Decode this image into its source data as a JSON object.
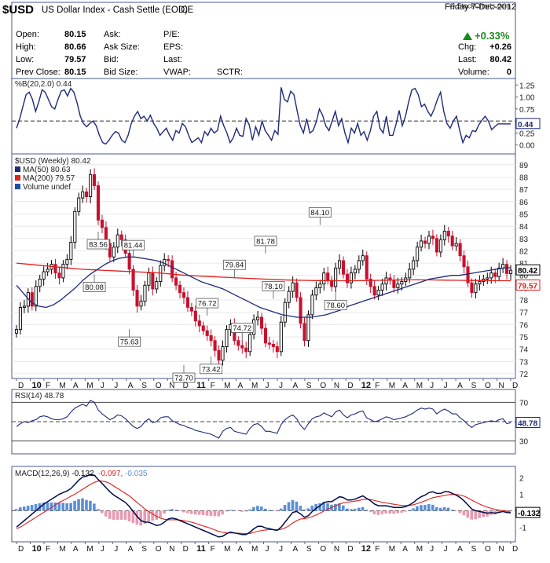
{
  "header": {
    "symbol": "$USD",
    "name": "US Dollar Index - Cash Settle (EOD)",
    "exchange": "ICE",
    "date": "Friday   7-Dec-2012",
    "watermark": "© StockCharts.com",
    "change_pct": "+0.33%",
    "fields": [
      {
        "label": "Open:",
        "value": "80.15"
      },
      {
        "label": "High:",
        "value": "80.66"
      },
      {
        "label": "Low:",
        "value": "79.57"
      },
      {
        "label": "Prev Close:",
        "value": "80.15"
      }
    ],
    "fields2": [
      "Ask:",
      "Ask Size:",
      "Bid:",
      "Bid Size:"
    ],
    "fields3": [
      "P/E:",
      "EPS:",
      "Last:",
      "VWAP:"
    ],
    "sctr": "SCTR:",
    "right": [
      {
        "label": "Chg:",
        "value": "+0.26"
      },
      {
        "label": "Last:",
        "value": "80.42"
      },
      {
        "label": "Volume:",
        "value": "0"
      }
    ]
  },
  "colors": {
    "up": "#000000",
    "down": "#c8102e",
    "ma50": "#1f2a7a",
    "ma200": "#e0201c",
    "panel_border": "#4a5a8a",
    "positive": "#1a8a1a",
    "hist_pos": "#5a8fd8",
    "hist_neg": "#e79ab0"
  },
  "chart_data": [
    {
      "type": "line",
      "title": "%B(20,2.0) 0.44",
      "ylim": [
        -0.12,
        1.32
      ],
      "ticks": [
        "1.25",
        "1.00",
        "0.75",
        "0.50",
        "0.25",
        "0.00"
      ],
      "last_label": "0.44",
      "x": [
        0,
        1,
        2,
        3,
        4,
        5,
        6,
        7,
        8,
        9,
        10,
        11,
        12,
        13,
        14,
        15,
        16,
        17,
        18,
        19,
        20,
        21,
        22,
        23,
        24,
        25,
        26,
        27,
        28,
        29,
        30,
        31,
        32,
        33,
        34,
        35,
        36,
        37,
        38,
        39,
        40,
        41,
        42,
        43,
        44,
        45,
        46,
        47,
        48,
        49,
        50,
        51,
        52,
        53,
        54,
        55,
        56,
        57,
        58,
        59,
        60,
        61,
        62,
        63,
        64,
        65,
        66,
        67,
        68,
        69,
        70,
        71,
        72,
        73,
        74,
        75,
        76,
        77,
        78,
        79,
        80,
        81,
        82,
        83,
        84,
        85,
        86,
        87,
        88,
        89,
        90,
        91,
        92,
        93,
        94,
        95,
        96,
        97,
        98,
        99,
        100,
        101,
        102,
        103,
        104,
        105,
        106,
        107,
        108,
        109,
        110,
        111,
        112,
        113,
        114,
        115,
        116,
        117,
        118,
        119,
        120,
        121,
        122,
        123,
        124,
        125,
        126,
        127,
        128,
        129,
        130,
        131,
        132,
        133,
        134,
        135,
        136,
        137,
        138,
        139,
        140,
        141,
        142,
        143,
        144,
        145,
        146,
        147,
        148,
        149,
        150,
        151,
        152,
        153,
        154,
        155
      ],
      "values": [
        0.35,
        0.55,
        0.8,
        1.05,
        1.1,
        0.95,
        0.7,
        0.9,
        1.15,
        1.1,
        0.95,
        0.8,
        0.75,
        0.95,
        1.12,
        1.15,
        1.02,
        1.18,
        1.1,
        0.88,
        0.6,
        0.45,
        0.38,
        0.45,
        0.5,
        0.4,
        0.2,
        0.05,
        0.02,
        0.1,
        0.2,
        0.28,
        0.25,
        0.1,
        0.05,
        0.2,
        0.45,
        0.6,
        0.7,
        0.55,
        0.6,
        0.5,
        0.62,
        0.45,
        0.35,
        0.2,
        0.28,
        0.35,
        0.2,
        0.1,
        0.3,
        0.25,
        0.45,
        0.38,
        0.2,
        0.05,
        0.1,
        0.15,
        0.05,
        0.28,
        0.2,
        0.35,
        0.25,
        0.3,
        0.6,
        0.4,
        0.25,
        0.05,
        0.15,
        0.35,
        0.2,
        0.18,
        0.55,
        0.42,
        0.1,
        0.38,
        0.2,
        0.5,
        0.3,
        0.2,
        0.1,
        0.3,
        0.22,
        1.2,
        0.95,
        0.9,
        1.12,
        1.05,
        0.72,
        0.4,
        0.25,
        0.55,
        0.25,
        0.3,
        0.48,
        0.75,
        0.62,
        0.4,
        0.3,
        0.5,
        0.7,
        0.4,
        0.55,
        0.25,
        0.05,
        0.35,
        0.25,
        0.45,
        0.2,
        0.28,
        0.1,
        0.3,
        0.6,
        0.7,
        0.35,
        0.25,
        0.6,
        0.2,
        0.2,
        0.42,
        0.72,
        0.4,
        0.6,
        0.9,
        1.15,
        1.18,
        1.05,
        0.8,
        0.85,
        0.7,
        0.6,
        0.75,
        0.95,
        1.1,
        0.7,
        0.45,
        0.35,
        0.5,
        0.6,
        0.3,
        0.05,
        0.2,
        0.15,
        0.3,
        0.28,
        0.42,
        0.52,
        0.6,
        0.5,
        0.32,
        0.38,
        0.44,
        0.44,
        0.44,
        0.44,
        0.44
      ]
    },
    {
      "type": "candlestick",
      "title": "$USD (Weekly) 80.42",
      "legend": [
        "MA(50) 80.63",
        "MA(200) 79.57",
        "Volume undef"
      ],
      "ylim": [
        72,
        89.5
      ],
      "ticks": [
        72,
        73,
        74,
        75,
        76,
        77,
        78,
        79,
        80,
        81,
        82,
        83,
        84,
        85,
        86,
        87,
        88,
        89
      ],
      "last_labels": [
        "80.42",
        "79.57"
      ],
      "closes": [
        75.6,
        77.4,
        77.5,
        78.6,
        77.5,
        79.1,
        79.7,
        80.3,
        80.5,
        80.9,
        80.2,
        79.8,
        80.9,
        81.3,
        82.7,
        85.2,
        86.3,
        86.8,
        86.4,
        88.2,
        87.3,
        84.5,
        83.9,
        82.6,
        81.5,
        82.3,
        83.3,
        82.9,
        81.8,
        80.5,
        78.8,
        77.5,
        77.9,
        79.2,
        80.2,
        78.9,
        79.5,
        80.8,
        81.3,
        81.2,
        79.8,
        79.2,
        78.6,
        78.2,
        77.4,
        77.1,
        76.3,
        75.9,
        75.5,
        75.1,
        74.7,
        73.9,
        73.1,
        74.2,
        75.6,
        76.0,
        74.7,
        74.3,
        74.1,
        73.8,
        75.2,
        76.4,
        76.6,
        75.7,
        74.5,
        74.4,
        74.2,
        73.8,
        76.2,
        77.8,
        78.7,
        79.4,
        78.2,
        76.1,
        74.7,
        76.8,
        78.4,
        79.0,
        79.3,
        80.2,
        79.6,
        79.1,
        80.6,
        81.2,
        80.1,
        79.4,
        80.2,
        80.5,
        81.2,
        81.6,
        79.7,
        79.1,
        78.4,
        78.8,
        79.3,
        79.8,
        79.6,
        79.0,
        79.3,
        79.5,
        79.8,
        80.5,
        81.2,
        82.3,
        82.8,
        82.6,
        83.2,
        83.0,
        81.9,
        82.9,
        83.6,
        83.2,
        82.4,
        82.6,
        81.6,
        80.7,
        79.4,
        78.6,
        79.3,
        79.5,
        79.7,
        79.8,
        80.2,
        79.9,
        80.6,
        80.9,
        80.15,
        80.42
      ],
      "annotations": [
        {
          "label": "83.56",
          "i": 21
        },
        {
          "label": "80.08",
          "i": 20
        },
        {
          "label": "81.44",
          "i": 30
        },
        {
          "label": "75.63",
          "i": 29
        },
        {
          "label": "72.70",
          "i": 43
        },
        {
          "label": "76.72",
          "i": 49
        },
        {
          "label": "73.42",
          "i": 50
        },
        {
          "label": "79.84",
          "i": 56
        },
        {
          "label": "74.72",
          "i": 58
        },
        {
          "label": "81.78",
          "i": 64
        },
        {
          "label": "78.10",
          "i": 66
        },
        {
          "label": "84.10",
          "i": 78
        },
        {
          "label": "78.60",
          "i": 82
        }
      ],
      "ma50": [
        79.2,
        78.5,
        77.8,
        77.5,
        77.4,
        77.6,
        78.0,
        78.5,
        79.0,
        79.6,
        80.1,
        80.5,
        80.9,
        81.2,
        81.4,
        81.5,
        81.5,
        81.4,
        81.3,
        81.2,
        81.0,
        80.7,
        80.4,
        80.1,
        79.8,
        79.5,
        79.3,
        79.1,
        78.9,
        78.6,
        78.3,
        78.0,
        77.7,
        77.4,
        77.2,
        77.0,
        76.8,
        76.7,
        76.6,
        76.6,
        76.6,
        76.7,
        76.8,
        77.0,
        77.2,
        77.5,
        77.7,
        77.9,
        78.1,
        78.3,
        78.5,
        78.7,
        78.9,
        79.1,
        79.3,
        79.5,
        79.7,
        79.8,
        79.9,
        80.0,
        80.0,
        80.1,
        80.2,
        80.3,
        80.4,
        80.5,
        80.6,
        80.63
      ],
      "ma200": [
        81.0,
        80.9,
        80.8,
        80.7,
        80.6,
        80.5,
        80.45,
        80.4,
        80.35,
        80.3,
        80.25,
        80.2,
        80.1,
        80.0,
        79.95,
        79.9,
        79.85,
        79.8,
        79.75,
        79.7,
        79.65,
        79.62,
        79.6,
        79.58,
        79.57,
        79.57,
        79.57,
        79.58,
        79.6,
        79.62,
        79.64,
        79.64,
        79.63,
        79.61,
        79.6,
        79.59,
        79.58,
        79.57,
        79.57
      ],
      "xlabels": [
        "D",
        "10",
        "F",
        "M",
        "A",
        "M",
        "J",
        "J",
        "A",
        "S",
        "O",
        "N",
        "D",
        "11",
        "F",
        "M",
        "A",
        "M",
        "J",
        "J",
        "A",
        "S",
        "O",
        "N",
        "D",
        "12",
        "F",
        "M",
        "A",
        "M",
        "J",
        "J",
        "A",
        "S",
        "O",
        "N",
        "D"
      ]
    },
    {
      "type": "line",
      "title": "RSI(14) 48.78",
      "ylim": [
        20,
        80
      ],
      "ticks": [
        "70",
        "50",
        "30"
      ],
      "last_label": "48.78",
      "values": [
        45,
        48,
        50,
        49,
        51,
        52,
        55,
        56,
        55,
        53,
        52,
        52,
        53,
        55,
        60,
        64,
        66,
        68,
        66,
        72,
        70,
        62,
        58,
        55,
        52,
        54,
        57,
        56,
        53,
        49,
        45,
        43,
        45,
        50,
        53,
        49,
        50,
        54,
        55,
        55,
        51,
        49,
        47,
        46,
        44,
        43,
        41,
        40,
        39,
        38,
        37,
        35,
        33,
        40,
        43,
        44,
        40,
        39,
        38,
        37,
        43,
        47,
        48,
        45,
        40,
        40,
        39,
        38,
        47,
        52,
        55,
        57,
        53,
        46,
        42,
        48,
        53,
        55,
        56,
        59,
        57,
        55,
        60,
        62,
        57,
        54,
        57,
        58,
        60,
        61,
        54,
        52,
        50,
        51,
        53,
        55,
        54,
        52,
        53,
        54,
        55,
        57,
        59,
        62,
        64,
        63,
        64,
        63,
        58,
        61,
        63,
        61,
        58,
        58,
        54,
        51,
        47,
        44,
        47,
        48,
        49,
        50,
        51,
        50,
        52,
        53,
        48,
        48.78
      ]
    },
    {
      "type": "line",
      "title": "MACD(12,26,9)",
      "parts": [
        "-0.132",
        "-0.097",
        "-0.035"
      ],
      "ylim": [
        -1.7,
        2.5
      ],
      "ticks": [
        "2",
        "1",
        "0",
        "-1"
      ],
      "last_label": "-0.132",
      "macd": [
        -1.0,
        -0.8,
        -0.6,
        -0.4,
        -0.2,
        0.0,
        0.2,
        0.4,
        0.55,
        0.7,
        0.85,
        1.0,
        1.1,
        1.2,
        1.35,
        1.6,
        1.85,
        2.05,
        2.1,
        2.2,
        2.15,
        1.9,
        1.65,
        1.4,
        1.15,
        0.95,
        0.8,
        0.65,
        0.5,
        0.25,
        -0.05,
        -0.35,
        -0.6,
        -0.7,
        -0.7,
        -0.8,
        -0.9,
        -0.85,
        -0.7,
        -0.5,
        -0.45,
        -0.5,
        -0.6,
        -0.7,
        -0.8,
        -0.9,
        -1.0,
        -1.1,
        -1.2,
        -1.3,
        -1.4,
        -1.5,
        -1.6,
        -1.55,
        -1.4,
        -1.3,
        -1.35,
        -1.4,
        -1.45,
        -1.45,
        -1.3,
        -1.1,
        -0.95,
        -0.95,
        -1.05,
        -1.1,
        -1.15,
        -1.2,
        -1.0,
        -0.7,
        -0.4,
        -0.1,
        -0.05,
        -0.2,
        -0.4,
        -0.3,
        -0.05,
        0.15,
        0.3,
        0.5,
        0.55,
        0.55,
        0.7,
        0.85,
        0.8,
        0.65,
        0.65,
        0.7,
        0.8,
        0.9,
        0.75,
        0.6,
        0.4,
        0.3,
        0.3,
        0.3,
        0.25,
        0.2,
        0.2,
        0.2,
        0.25,
        0.35,
        0.5,
        0.7,
        0.85,
        0.95,
        1.1,
        1.15,
        1.05,
        1.05,
        1.15,
        1.15,
        1.05,
        0.95,
        0.8,
        0.6,
        0.35,
        0.1,
        0.0,
        -0.05,
        -0.1,
        -0.15,
        -0.12,
        -0.15,
        -0.1,
        -0.05,
        -0.11,
        -0.132
      ],
      "signal": [
        -1.1,
        -1.0,
        -0.85,
        -0.7,
        -0.55,
        -0.4,
        -0.25,
        -0.1,
        0.05,
        0.2,
        0.35,
        0.5,
        0.62,
        0.75,
        0.88,
        1.0,
        1.15,
        1.3,
        1.45,
        1.6,
        1.72,
        1.8,
        1.8,
        1.75,
        1.65,
        1.5,
        1.35,
        1.2,
        1.05,
        0.9,
        0.7,
        0.5,
        0.3,
        0.1,
        -0.05,
        -0.2,
        -0.35,
        -0.45,
        -0.52,
        -0.55,
        -0.55,
        -0.55,
        -0.57,
        -0.6,
        -0.65,
        -0.7,
        -0.77,
        -0.85,
        -0.93,
        -1.0,
        -1.08,
        -1.17,
        -1.26,
        -1.32,
        -1.35,
        -1.35,
        -1.36,
        -1.37,
        -1.38,
        -1.4,
        -1.38,
        -1.32,
        -1.25,
        -1.2,
        -1.17,
        -1.15,
        -1.15,
        -1.16,
        -1.13,
        -1.05,
        -0.92,
        -0.75,
        -0.6,
        -0.5,
        -0.48,
        -0.44,
        -0.36,
        -0.26,
        -0.15,
        -0.02,
        0.1,
        0.19,
        0.29,
        0.4,
        0.48,
        0.52,
        0.55,
        0.58,
        0.62,
        0.68,
        0.7,
        0.68,
        0.62,
        0.56,
        0.51,
        0.47,
        0.43,
        0.39,
        0.35,
        0.32,
        0.31,
        0.32,
        0.36,
        0.43,
        0.51,
        0.6,
        0.7,
        0.79,
        0.84,
        0.88,
        0.93,
        0.97,
        0.99,
        0.98,
        0.95,
        0.88,
        0.78,
        0.64,
        0.52,
        0.4,
        0.3,
        0.21,
        0.14,
        0.08,
        0.04,
        0.01,
        -0.02,
        -0.097
      ]
    }
  ]
}
